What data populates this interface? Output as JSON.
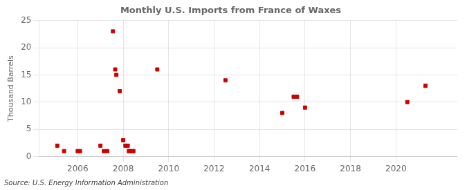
{
  "chart_data": {
    "type": "scatter",
    "title": "Monthly U.S. Imports from France of Waxes",
    "ylabel": "Thousand Barrels",
    "source": "Source: U.S. Energy Information Administration",
    "x": [
      2005.1,
      2005.4,
      2006.0,
      2006.1,
      2007.0,
      2007.15,
      2007.3,
      2007.55,
      2007.65,
      2007.7,
      2007.85,
      2008.0,
      2008.1,
      2008.2,
      2008.25,
      2008.3,
      2008.4,
      2008.45,
      2009.5,
      2012.5,
      2015.0,
      2015.5,
      2015.65,
      2016.0,
      2020.5,
      2021.3
    ],
    "values": [
      2,
      1,
      1,
      1,
      2,
      1,
      1,
      23,
      16,
      15,
      12,
      3,
      2,
      2,
      1,
      1,
      1,
      1,
      16,
      14,
      8,
      11,
      11,
      9,
      10,
      13
    ],
    "color": "#cc0000",
    "marker": "square",
    "xlim": [
      2004.3,
      2022.7
    ],
    "xticks": [
      2006,
      2008,
      2010,
      2012,
      2014,
      2016,
      2018,
      2020
    ],
    "ylim": [
      0,
      25
    ],
    "yticks": [
      0,
      5,
      10,
      15,
      20,
      25
    ],
    "grid": true
  }
}
